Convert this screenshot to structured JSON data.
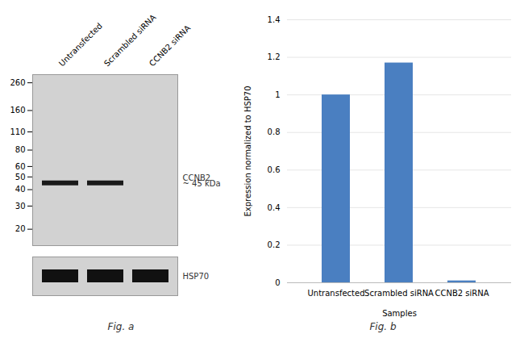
{
  "chart_data": [
    {
      "type": "blot",
      "title": "Fig. a",
      "log": "y",
      "categories": [
        "Untransfected",
        "Scrambled siRNA",
        "CCNB2 siRNA"
      ],
      "ylim": [
        15,
        300
      ],
      "yticks": [
        260,
        160,
        110,
        80,
        60,
        50,
        40,
        30,
        20
      ],
      "series": [
        {
          "name": "CCNB2",
          "color": "#1a1a1a",
          "values": [
            45,
            45,
            null
          ]
        }
      ],
      "annotations": [
        {
          "text": "~ 45 kDa",
          "y": 47
        }
      ]
    },
    {
      "type": "strip",
      "label": "HSP70",
      "color": "#111111",
      "categories": [
        "Untransfected",
        "Scrambled siRNA",
        "CCNB2 siRNA"
      ],
      "tick_labels": false
    },
    {
      "type": "bar",
      "title": "Fig. b",
      "categories": [
        "Untransfected",
        "Scrambled siRNA",
        "CCNB2 siRNA"
      ],
      "values": [
        1.0,
        1.17,
        0.01
      ],
      "color": "#4a7fc1",
      "ylim": [
        0,
        1.4
      ],
      "yticks": [
        0,
        0.2,
        0.4,
        0.6,
        0.8,
        1.0,
        1.2,
        1.4
      ],
      "ylabel": "Expression normalized to HSP70",
      "xlabel": "Samples",
      "grid": true
    }
  ]
}
